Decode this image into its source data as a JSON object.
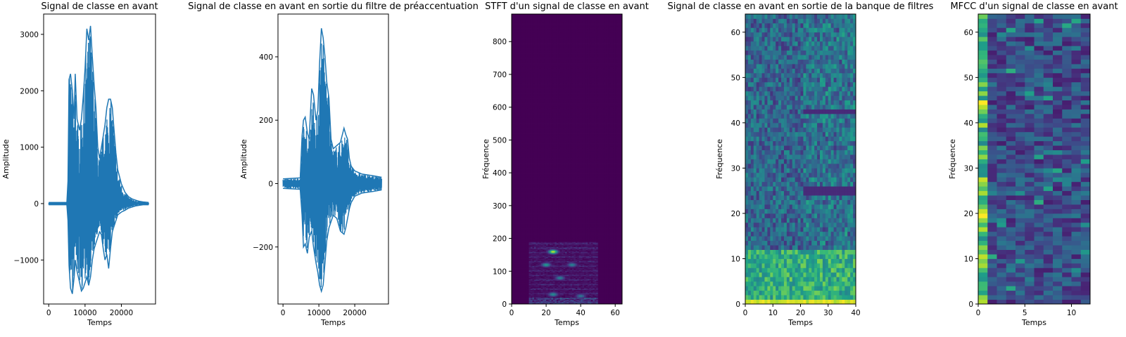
{
  "chart_data": [
    {
      "type": "line",
      "title": "Signal de classe en avant",
      "xlabel": "Temps",
      "ylabel": "Amplitude",
      "xlim": [
        -1400,
        29400
      ],
      "ylim": [
        -1780,
        3360
      ],
      "xticks": [
        0,
        10000,
        20000
      ],
      "yticks": [
        -1000,
        0,
        1000,
        2000,
        3000
      ],
      "color": "#1f77b4",
      "envelope": {
        "x": [
          0,
          5000,
          5300,
          5600,
          6000,
          6500,
          7000,
          7300,
          7800,
          8500,
          9000,
          9500,
          10000,
          10500,
          11000,
          11500,
          12000,
          12500,
          13000,
          13500,
          14000,
          14500,
          15000,
          15500,
          16000,
          16500,
          17000,
          17500,
          18000,
          18500,
          19000,
          20000,
          21000,
          22000,
          23000,
          24000,
          25000,
          26000,
          27500
        ],
        "upper": [
          20,
          20,
          400,
          2200,
          2300,
          2000,
          1500,
          2300,
          1500,
          1300,
          1500,
          1900,
          2400,
          3100,
          2900,
          3150,
          2600,
          2100,
          1700,
          1000,
          800,
          1000,
          1200,
          1400,
          1700,
          1850,
          1850,
          1700,
          1300,
          900,
          600,
          350,
          200,
          120,
          80,
          60,
          40,
          30,
          20
        ],
        "lower": [
          -20,
          -20,
          -300,
          -1100,
          -1500,
          -1600,
          -1300,
          -1000,
          -1200,
          -1400,
          -1550,
          -1500,
          -1400,
          -1300,
          -1450,
          -1300,
          -1000,
          -800,
          -700,
          -600,
          -500,
          -550,
          -800,
          -1000,
          -900,
          -1150,
          -800,
          -500,
          -400,
          -300,
          -200,
          -150,
          -120,
          -80,
          -60,
          -40,
          -30,
          -20,
          -20
        ]
      }
    },
    {
      "type": "line",
      "title": "Signal de classe en avant en sortie du filtre de préaccentuation",
      "xlabel": "Temps",
      "ylabel": "Amplitude",
      "xlim": [
        -1400,
        29400
      ],
      "ylim": [
        -380,
        535
      ],
      "xticks": [
        0,
        10000,
        20000
      ],
      "yticks": [
        -200,
        0,
        200,
        400
      ],
      "color": "#1f77b4",
      "envelope": {
        "x": [
          0,
          4800,
          5300,
          5700,
          6200,
          6800,
          7300,
          8000,
          8500,
          9200,
          9700,
          10200,
          10700,
          11200,
          11700,
          12200,
          12800,
          13400,
          14000,
          15000,
          16000,
          17000,
          17500,
          18000,
          18500,
          19000,
          20000,
          22000,
          25000,
          27500
        ],
        "upper": [
          15,
          18,
          150,
          200,
          210,
          160,
          140,
          300,
          280,
          200,
          230,
          380,
          490,
          460,
          400,
          320,
          270,
          140,
          110,
          120,
          130,
          175,
          155,
          140,
          80,
          55,
          40,
          30,
          25,
          20
        ],
        "lower": [
          -15,
          -18,
          -100,
          -200,
          -190,
          -220,
          -170,
          -150,
          -200,
          -250,
          -280,
          -320,
          -340,
          -320,
          -250,
          -180,
          -140,
          -120,
          -100,
          -110,
          -150,
          -160,
          -140,
          -110,
          -80,
          -60,
          -40,
          -30,
          -25,
          -20
        ]
      }
    },
    {
      "type": "heatmap",
      "title": "STFT d'un signal de classe en avant",
      "xlabel": "Temps",
      "ylabel": "Fréquence",
      "xlim": [
        0,
        64
      ],
      "ylim": [
        0,
        884
      ],
      "xticks": [
        0,
        20,
        40,
        60
      ],
      "yticks": [
        0,
        100,
        200,
        300,
        400,
        500,
        600,
        700,
        800
      ],
      "colormap": "viridis",
      "grid": [
        64,
        442
      ],
      "peaks": [
        {
          "x": 24,
          "y": 160,
          "value": 0.95
        },
        {
          "x": 20,
          "y": 120,
          "value": 0.55
        },
        {
          "x": 35,
          "y": 120,
          "value": 0.45
        },
        {
          "x": 28,
          "y": 80,
          "value": 0.45
        },
        {
          "x": 24,
          "y": 30,
          "value": 0.5
        },
        {
          "x": 40,
          "y": 25,
          "value": 0.4
        }
      ],
      "active_range": {
        "x": [
          10,
          50
        ],
        "y": [
          0,
          190
        ]
      }
    },
    {
      "type": "heatmap",
      "title": "Signal de classe en avant en sortie de la banque de filtres",
      "xlabel": "Temps",
      "ylabel": "Fréquence",
      "xlim": [
        0,
        40
      ],
      "ylim": [
        0,
        64
      ],
      "xticks": [
        0,
        10,
        20,
        30,
        40
      ],
      "yticks": [
        0,
        10,
        20,
        30,
        40,
        50,
        60
      ],
      "colormap": "viridis",
      "grid": [
        40,
        64
      ],
      "band_split": 12
    },
    {
      "type": "heatmap",
      "title": "MFCC d'un signal de classe en avant",
      "xlabel": "Temps",
      "ylabel": "Fréquence",
      "xlim": [
        0,
        12
      ],
      "ylim": [
        0,
        64
      ],
      "xticks": [
        0,
        5,
        10
      ],
      "yticks": [
        0,
        10,
        20,
        30,
        40,
        50,
        60
      ],
      "colormap": "viridis",
      "grid": [
        12,
        64
      ],
      "first_column_strong": true
    }
  ]
}
